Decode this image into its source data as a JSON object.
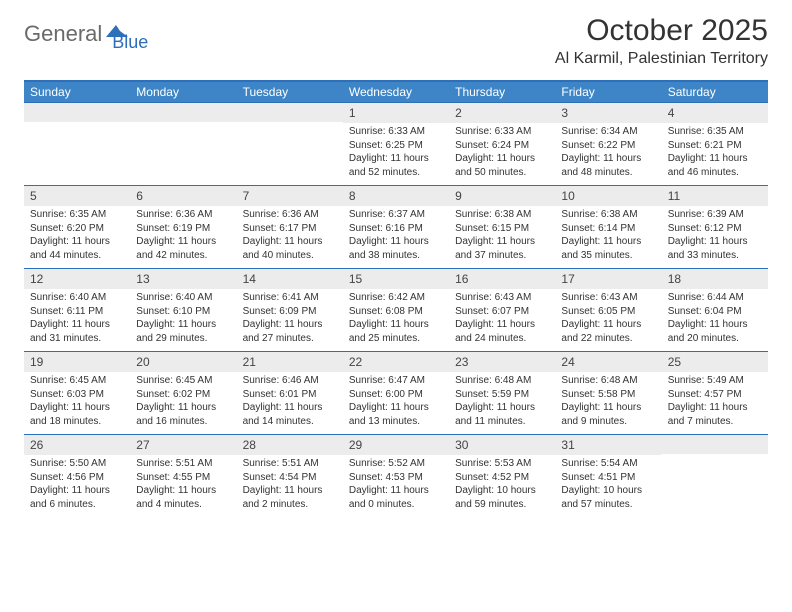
{
  "branding": {
    "logo_part1": "General",
    "logo_part2": "Blue",
    "logo_color1": "#6a6a6a",
    "logo_color2": "#2d6fb8"
  },
  "title": "October 2025",
  "location": "Al Karmil, Palestinian Territory",
  "header_bg": "#3d85c6",
  "border_color": "#2d6fb8",
  "daynum_bg": "#ececec",
  "day_names": [
    "Sunday",
    "Monday",
    "Tuesday",
    "Wednesday",
    "Thursday",
    "Friday",
    "Saturday"
  ],
  "weeks": [
    [
      {
        "day": "",
        "sunrise": "",
        "sunset": "",
        "daylight": ""
      },
      {
        "day": "",
        "sunrise": "",
        "sunset": "",
        "daylight": ""
      },
      {
        "day": "",
        "sunrise": "",
        "sunset": "",
        "daylight": ""
      },
      {
        "day": "1",
        "sunrise": "Sunrise: 6:33 AM",
        "sunset": "Sunset: 6:25 PM",
        "daylight": "Daylight: 11 hours and 52 minutes."
      },
      {
        "day": "2",
        "sunrise": "Sunrise: 6:33 AM",
        "sunset": "Sunset: 6:24 PM",
        "daylight": "Daylight: 11 hours and 50 minutes."
      },
      {
        "day": "3",
        "sunrise": "Sunrise: 6:34 AM",
        "sunset": "Sunset: 6:22 PM",
        "daylight": "Daylight: 11 hours and 48 minutes."
      },
      {
        "day": "4",
        "sunrise": "Sunrise: 6:35 AM",
        "sunset": "Sunset: 6:21 PM",
        "daylight": "Daylight: 11 hours and 46 minutes."
      }
    ],
    [
      {
        "day": "5",
        "sunrise": "Sunrise: 6:35 AM",
        "sunset": "Sunset: 6:20 PM",
        "daylight": "Daylight: 11 hours and 44 minutes."
      },
      {
        "day": "6",
        "sunrise": "Sunrise: 6:36 AM",
        "sunset": "Sunset: 6:19 PM",
        "daylight": "Daylight: 11 hours and 42 minutes."
      },
      {
        "day": "7",
        "sunrise": "Sunrise: 6:36 AM",
        "sunset": "Sunset: 6:17 PM",
        "daylight": "Daylight: 11 hours and 40 minutes."
      },
      {
        "day": "8",
        "sunrise": "Sunrise: 6:37 AM",
        "sunset": "Sunset: 6:16 PM",
        "daylight": "Daylight: 11 hours and 38 minutes."
      },
      {
        "day": "9",
        "sunrise": "Sunrise: 6:38 AM",
        "sunset": "Sunset: 6:15 PM",
        "daylight": "Daylight: 11 hours and 37 minutes."
      },
      {
        "day": "10",
        "sunrise": "Sunrise: 6:38 AM",
        "sunset": "Sunset: 6:14 PM",
        "daylight": "Daylight: 11 hours and 35 minutes."
      },
      {
        "day": "11",
        "sunrise": "Sunrise: 6:39 AM",
        "sunset": "Sunset: 6:12 PM",
        "daylight": "Daylight: 11 hours and 33 minutes."
      }
    ],
    [
      {
        "day": "12",
        "sunrise": "Sunrise: 6:40 AM",
        "sunset": "Sunset: 6:11 PM",
        "daylight": "Daylight: 11 hours and 31 minutes."
      },
      {
        "day": "13",
        "sunrise": "Sunrise: 6:40 AM",
        "sunset": "Sunset: 6:10 PM",
        "daylight": "Daylight: 11 hours and 29 minutes."
      },
      {
        "day": "14",
        "sunrise": "Sunrise: 6:41 AM",
        "sunset": "Sunset: 6:09 PM",
        "daylight": "Daylight: 11 hours and 27 minutes."
      },
      {
        "day": "15",
        "sunrise": "Sunrise: 6:42 AM",
        "sunset": "Sunset: 6:08 PM",
        "daylight": "Daylight: 11 hours and 25 minutes."
      },
      {
        "day": "16",
        "sunrise": "Sunrise: 6:43 AM",
        "sunset": "Sunset: 6:07 PM",
        "daylight": "Daylight: 11 hours and 24 minutes."
      },
      {
        "day": "17",
        "sunrise": "Sunrise: 6:43 AM",
        "sunset": "Sunset: 6:05 PM",
        "daylight": "Daylight: 11 hours and 22 minutes."
      },
      {
        "day": "18",
        "sunrise": "Sunrise: 6:44 AM",
        "sunset": "Sunset: 6:04 PM",
        "daylight": "Daylight: 11 hours and 20 minutes."
      }
    ],
    [
      {
        "day": "19",
        "sunrise": "Sunrise: 6:45 AM",
        "sunset": "Sunset: 6:03 PM",
        "daylight": "Daylight: 11 hours and 18 minutes."
      },
      {
        "day": "20",
        "sunrise": "Sunrise: 6:45 AM",
        "sunset": "Sunset: 6:02 PM",
        "daylight": "Daylight: 11 hours and 16 minutes."
      },
      {
        "day": "21",
        "sunrise": "Sunrise: 6:46 AM",
        "sunset": "Sunset: 6:01 PM",
        "daylight": "Daylight: 11 hours and 14 minutes."
      },
      {
        "day": "22",
        "sunrise": "Sunrise: 6:47 AM",
        "sunset": "Sunset: 6:00 PM",
        "daylight": "Daylight: 11 hours and 13 minutes."
      },
      {
        "day": "23",
        "sunrise": "Sunrise: 6:48 AM",
        "sunset": "Sunset: 5:59 PM",
        "daylight": "Daylight: 11 hours and 11 minutes."
      },
      {
        "day": "24",
        "sunrise": "Sunrise: 6:48 AM",
        "sunset": "Sunset: 5:58 PM",
        "daylight": "Daylight: 11 hours and 9 minutes."
      },
      {
        "day": "25",
        "sunrise": "Sunrise: 5:49 AM",
        "sunset": "Sunset: 4:57 PM",
        "daylight": "Daylight: 11 hours and 7 minutes."
      }
    ],
    [
      {
        "day": "26",
        "sunrise": "Sunrise: 5:50 AM",
        "sunset": "Sunset: 4:56 PM",
        "daylight": "Daylight: 11 hours and 6 minutes."
      },
      {
        "day": "27",
        "sunrise": "Sunrise: 5:51 AM",
        "sunset": "Sunset: 4:55 PM",
        "daylight": "Daylight: 11 hours and 4 minutes."
      },
      {
        "day": "28",
        "sunrise": "Sunrise: 5:51 AM",
        "sunset": "Sunset: 4:54 PM",
        "daylight": "Daylight: 11 hours and 2 minutes."
      },
      {
        "day": "29",
        "sunrise": "Sunrise: 5:52 AM",
        "sunset": "Sunset: 4:53 PM",
        "daylight": "Daylight: 11 hours and 0 minutes."
      },
      {
        "day": "30",
        "sunrise": "Sunrise: 5:53 AM",
        "sunset": "Sunset: 4:52 PM",
        "daylight": "Daylight: 10 hours and 59 minutes."
      },
      {
        "day": "31",
        "sunrise": "Sunrise: 5:54 AM",
        "sunset": "Sunset: 4:51 PM",
        "daylight": "Daylight: 10 hours and 57 minutes."
      },
      {
        "day": "",
        "sunrise": "",
        "sunset": "",
        "daylight": ""
      }
    ]
  ]
}
